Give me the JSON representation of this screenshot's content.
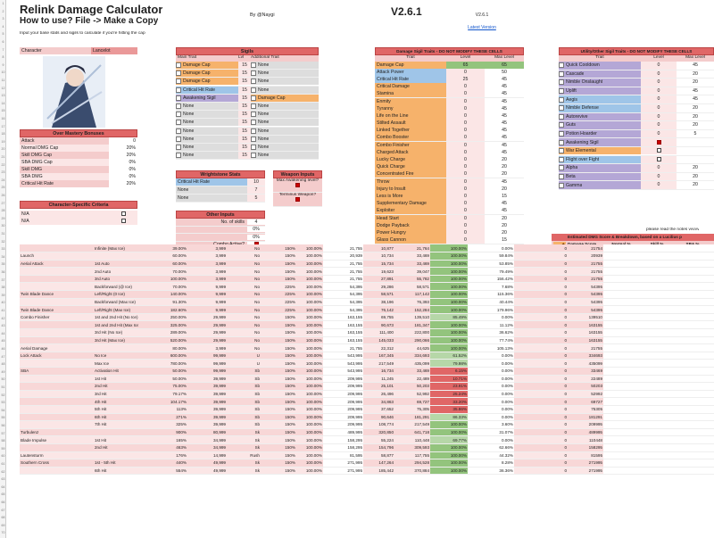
{
  "header": {
    "title": "Relink Damage Calculator",
    "subtitle": "How to use? File -> Make a Copy",
    "hint": "Input your base stats and sigils to calculate if you're hitting the cap",
    "byline": "By @Naygi",
    "version": "V2.6.1",
    "version_small": "V2.6.1",
    "latest_link": "Latest Version"
  },
  "character": {
    "label": "Character",
    "value": "Lancelot"
  },
  "mastery": {
    "title": "Over Mastery Bonuses",
    "rows": [
      {
        "name": "Attack",
        "value": "0"
      },
      {
        "name": "Normal DMG Cap",
        "value": "20%"
      },
      {
        "name": "Skill DMG Cap",
        "value": "20%"
      },
      {
        "name": "SBA DMG Cap",
        "value": "0%"
      },
      {
        "name": "Skill DMG",
        "value": "0%"
      },
      {
        "name": "SBA DMG",
        "value": "0%"
      },
      {
        "name": "Critical Hit Rate",
        "value": "20%"
      }
    ]
  },
  "char_criteria": {
    "title": "Character-Specific Criteria",
    "rows": [
      {
        "name": "N/A"
      },
      {
        "name": "N/A"
      }
    ]
  },
  "sigils": {
    "title": "Sigils",
    "col_main": "Main Trait",
    "col_lvl": "Lvl",
    "col_add": "Additional Trait",
    "rows": [
      {
        "main": "Damage Cap",
        "lvl": "15",
        "add": "None"
      },
      {
        "main": "Damage Cap",
        "lvl": "15",
        "add": "None"
      },
      {
        "main": "Damage Cap",
        "lvl": "15",
        "add": "None"
      },
      {
        "main": "Critical Hit Rate",
        "lvl": "15",
        "add": "None"
      },
      {
        "main": "Awakening Sigil",
        "lvl": "15",
        "add": "Damage Cap"
      },
      {
        "main": "None",
        "lvl": "15",
        "add": "None"
      },
      {
        "main": "None",
        "lvl": "15",
        "add": "None"
      },
      {
        "main": "None",
        "lvl": "15",
        "add": "None"
      },
      {
        "main": "None",
        "lvl": "15",
        "add": "None"
      },
      {
        "main": "None",
        "lvl": "15",
        "add": "None"
      },
      {
        "main": "None",
        "lvl": "15",
        "add": "None"
      },
      {
        "main": "None",
        "lvl": "15",
        "add": "None"
      }
    ]
  },
  "wrightstone": {
    "title": "Wrightstone Stats",
    "rows": [
      {
        "name": "Critical Hit Rate",
        "value": "10"
      },
      {
        "name": "None",
        "value": "7"
      },
      {
        "name": "None",
        "value": "5"
      }
    ]
  },
  "weapon": {
    "title": "Weapon Inputs",
    "rows": [
      {
        "name": "Max Awakening level?"
      },
      {
        "name": "Terminus Weapon?"
      }
    ]
  },
  "other": {
    "title": "Other Inputs",
    "rows": [
      {
        "name": "No. of skills",
        "value": "4"
      },
      {
        "name": "",
        "value": "0%"
      },
      {
        "name": "",
        "value": "0%"
      },
      {
        "name": "Combo Active?",
        "value": ""
      },
      {
        "name": "Current HP",
        "value": "100%"
      },
      {
        "name": "Back Attack?",
        "value": ""
      }
    ]
  },
  "dmg_traits": {
    "title": "Damage Sigil Traits - DO NOT MODIFY THESE CELLS",
    "col_trait": "Trait",
    "col_level": "Level",
    "col_max": "Max Level",
    "rows": [
      {
        "t": "Damage Cap",
        "l": "65",
        "m": "65"
      },
      {
        "t": "Attack Power",
        "l": "0",
        "m": "50"
      },
      {
        "t": "Critical Hit Rate",
        "l": "25",
        "m": "45"
      },
      {
        "t": "Critical Damage",
        "l": "0",
        "m": "45"
      },
      {
        "t": "Stamina",
        "l": "0",
        "m": "45"
      },
      {
        "t": "Enmity",
        "l": "0",
        "m": "45"
      },
      {
        "t": "Tyranny",
        "l": "0",
        "m": "45"
      },
      {
        "t": "Life on the Line",
        "l": "0",
        "m": "45"
      },
      {
        "t": "Stilted Assault",
        "l": "0",
        "m": "45"
      },
      {
        "t": "Linked Together",
        "l": "0",
        "m": "45"
      },
      {
        "t": "Combo Booster",
        "l": "0",
        "m": "45"
      },
      {
        "t": "Combo Finisher",
        "l": "0",
        "m": "45"
      },
      {
        "t": "Charged Attack",
        "l": "0",
        "m": "45"
      },
      {
        "t": "Lucky Charge",
        "l": "0",
        "m": "20"
      },
      {
        "t": "Quick Charge",
        "l": "0",
        "m": "20"
      },
      {
        "t": "Concentrated Fire",
        "l": "0",
        "m": "20"
      },
      {
        "t": "Throw",
        "l": "0",
        "m": "45"
      },
      {
        "t": "Injury to Insult",
        "l": "0",
        "m": "20"
      },
      {
        "t": "Less is More",
        "l": "0",
        "m": "15"
      },
      {
        "t": "Supplementary Damage",
        "l": "0",
        "m": "45"
      },
      {
        "t": "Exploiter",
        "l": "0",
        "m": "45"
      },
      {
        "t": "Head Start",
        "l": "0",
        "m": "20"
      },
      {
        "t": "Dodge Payback",
        "l": "0",
        "m": "20"
      },
      {
        "t": "Power Hungry",
        "l": "0",
        "m": "20"
      },
      {
        "t": "Glass Cannon",
        "l": "0",
        "m": "15"
      }
    ]
  },
  "utility": {
    "title": "Utility/Other Sigil Traits - DO NOT MODIFY THESE CELLS",
    "col_trait": "Trait",
    "col_level": "Level",
    "col_max": "Max Level",
    "rows": [
      {
        "t": "Quick Cooldown",
        "l": "0",
        "m": "45"
      },
      {
        "t": "Cascade",
        "l": "0",
        "m": "20"
      },
      {
        "t": "Nimble Onslaught",
        "l": "0",
        "m": "20"
      },
      {
        "t": "Uplift",
        "l": "0",
        "m": "45"
      },
      {
        "t": "Aegis",
        "l": "0",
        "m": "45"
      },
      {
        "t": "Nimble Defense",
        "l": "0",
        "m": "20"
      },
      {
        "t": "Autorevive",
        "l": "0",
        "m": "20"
      },
      {
        "t": "Guts",
        "l": "0",
        "m": "20"
      },
      {
        "t": "Potion Hoarder",
        "l": "0",
        "m": "5"
      },
      {
        "t": "Awakening Sigil",
        "l": "",
        "m": ""
      },
      {
        "t": "War Elemental",
        "l": "",
        "m": ""
      },
      {
        "t": "Flight over Fight",
        "l": "",
        "m": ""
      },
      {
        "t": "Alpha",
        "l": "0",
        "m": "20"
      },
      {
        "t": "Beta",
        "l": "0",
        "m": "20"
      },
      {
        "t": "Gamma",
        "l": "0",
        "m": "20"
      }
    ]
  },
  "estimate": {
    "note_top": "please read the notes vvvvv",
    "title": "Estimated DMG Score & Breakdown, based on a Lucilius p",
    "col1": "Damage Score",
    "col2": "Normal %",
    "col3": "Skill %",
    "col4": "SBA %",
    "v1": "0.00%",
    "v2": "No Data",
    "v3": "No Data",
    "v4": "No Data",
    "note": "*these values are based on an example run and are not de"
  },
  "table_rows": [
    [
      "",
      "Infinite (Max Ice)",
      "39.00%",
      "3,999",
      "No",
      "150%",
      "100.00%",
      "21,755",
      "10,877",
      "21,764",
      "100.00%",
      "0.00%",
      "0",
      "21754"
    ],
    [
      "Launch",
      "",
      "60.00%",
      "3,999",
      "No",
      "150%",
      "100.00%",
      "20,939",
      "10,734",
      "33,469",
      "100.00%",
      "59.84%",
      "0",
      "20939"
    ],
    [
      "Aerial Attack",
      "1st Auto",
      "60.00%",
      "3,999",
      "No",
      "150%",
      "100.00%",
      "21,755",
      "15,734",
      "33,469",
      "100.00%",
      "53.85%",
      "0",
      "21755"
    ],
    [
      "",
      "2nd Auto",
      "70.00%",
      "3,999",
      "No",
      "150%",
      "100.00%",
      "21,755",
      "19,623",
      "39,047",
      "100.00%",
      "79.49%",
      "0",
      "21755"
    ],
    [
      "",
      "3rd Auto",
      "100.00%",
      "3,999",
      "No",
      "150%",
      "100.00%",
      "21,755",
      "27,891",
      "55,782",
      "100.00%",
      "156.42%",
      "0",
      "21755"
    ],
    [
      "",
      "Backforward (@ Ice)",
      "70.00%",
      "9,999",
      "No",
      "225%",
      "100.00%",
      "54,395",
      "29,286",
      "58,571",
      "100.00%",
      "7.68%",
      "0",
      "54395"
    ],
    [
      "Twin Blade Dance",
      "Left/Right (0 Ice)",
      "140.00%",
      "9,999",
      "No",
      "225%",
      "100.00%",
      "54,395",
      "58,571",
      "117,142",
      "100.00%",
      "115.36%",
      "0",
      "54395"
    ],
    [
      "",
      "Backforward (Max Ice)",
      "91.30%",
      "9,999",
      "No",
      "225%",
      "100.00%",
      "54,395",
      "38,196",
      "76,393",
      "100.00%",
      "40.44%",
      "0",
      "54395"
    ],
    [
      "Twin Blade Dance",
      "Left/Right (Max Ice)",
      "182.60%",
      "9,999",
      "No",
      "225%",
      "100.00%",
      "54,395",
      "76,142",
      "152,284",
      "100.00%",
      "179.96%",
      "0",
      "54395"
    ],
    [
      "Combo Finisher",
      "1st and 2nd Hit (No Ice)",
      "250.00%",
      "29,999",
      "No",
      "150%",
      "100.00%",
      "163,155",
      "69,755",
      "139,510",
      "85.49%",
      "0.00%",
      "0",
      "139510"
    ],
    [
      "",
      "1st and 2nd Hit (Max Ice)",
      "325.00%",
      "29,999",
      "No",
      "150%",
      "100.00%",
      "163,155",
      "90,673",
      "181,347",
      "100.00%",
      "11.12%",
      "0",
      "163155"
    ],
    [
      "",
      "3rd Hit (No Ice)",
      "289.00%",
      "29,999",
      "No",
      "150%",
      "100.00%",
      "163,155",
      "111,400",
      "222,800",
      "100.00%",
      "36.62%",
      "0",
      "163155"
    ],
    [
      "",
      "3rd Hit (Max Ice)",
      "520.00%",
      "29,999",
      "No",
      "150%",
      "100.00%",
      "163,155",
      "145,033",
      "290,066",
      "100.00%",
      "77.74%",
      "0",
      "163155"
    ],
    [
      "Aerial Damage",
      "",
      "80.00%",
      "3,999",
      "No",
      "150%",
      "100.00%",
      "21,755",
      "22,312",
      "44,625",
      "100.00%",
      "105.13%",
      "0",
      "21755"
    ],
    [
      "Lock Attack",
      "No Ice",
      "600.00%",
      "99,999",
      "U",
      "150%",
      "100.00%",
      "543,995",
      "167,345",
      "334,693",
      "61.52%",
      "0.00%",
      "0",
      "334693"
    ],
    [
      "",
      "Max Ice",
      "780.00%",
      "99,999",
      "U",
      "150%",
      "100.00%",
      "543,995",
      "217,549",
      "435,099",
      "79.98%",
      "0.00%",
      "0",
      "435099"
    ],
    [
      "SBA",
      "Activation Hit",
      "50.00%",
      "99,999",
      "Sb",
      "150%",
      "100.00%",
      "543,995",
      "16,734",
      "33,469",
      "6.15%",
      "0.00%",
      "0",
      "33469"
    ],
    [
      "",
      "1st Hit",
      "50.00%",
      "39,999",
      "Sb",
      "150%",
      "100.00%",
      "209,995",
      "11,245",
      "22,489",
      "10.71%",
      "0.00%",
      "0",
      "22489"
    ],
    [
      "",
      "2nd Hit",
      "75.00%",
      "39,999",
      "Sb",
      "150%",
      "100.00%",
      "209,995",
      "25,101",
      "50,203",
      "23.91%",
      "0.00%",
      "0",
      "50203"
    ],
    [
      "",
      "3rd Hit",
      "79.17%",
      "39,999",
      "Sb",
      "150%",
      "100.00%",
      "209,995",
      "26,496",
      "52,992",
      "25.24%",
      "0.00%",
      "0",
      "52992"
    ],
    [
      "",
      "4th Hit",
      "104.17%",
      "39,999",
      "Sb",
      "150%",
      "100.00%",
      "209,995",
      "34,863",
      "69,727",
      "33.20%",
      "0.00%",
      "0",
      "69727"
    ],
    [
      "",
      "5th Hit",
      "113%",
      "39,999",
      "Sb",
      "150%",
      "100.00%",
      "209,995",
      "37,652",
      "75,305",
      "35.86%",
      "0.00%",
      "0",
      "75305"
    ],
    [
      "",
      "6th Hit",
      "271%",
      "39,999",
      "Sb",
      "150%",
      "100.00%",
      "209,995",
      "90,646",
      "181,291",
      "86.33%",
      "0.00%",
      "0",
      "181291"
    ],
    [
      "",
      "7th Hit",
      "325%",
      "39,999",
      "Sb",
      "150%",
      "100.00%",
      "209,995",
      "108,774",
      "217,549",
      "100.00%",
      "3.60%",
      "0",
      "209995"
    ],
    [
      "Turbulenz",
      "",
      "900%",
      "80,999",
      "Sk",
      "150%",
      "100.00%",
      "489,995",
      "320,850",
      "641,718",
      "100.00%",
      "31.07%",
      "0",
      "489995"
    ],
    [
      "Blade Impulse",
      "1st Hit",
      "165%",
      "34,999",
      "Sk",
      "150%",
      "100.00%",
      "158,295",
      "55,224",
      "110,448",
      "69.77%",
      "0.00%",
      "0",
      "110448"
    ],
    [
      "",
      "2nd Hit",
      "463%",
      "34,999",
      "Sk",
      "150%",
      "100.00%",
      "158,295",
      "154,796",
      "309,593",
      "100.00%",
      "62.66%",
      "0",
      "158295"
    ],
    [
      "Lautensturm",
      "",
      "176%",
      "14,999",
      "Rush",
      "150%",
      "100.00%",
      "81,595",
      "58,877",
      "117,755",
      "100.00%",
      "44.32%",
      "0",
      "81595"
    ],
    [
      "Southern Cross",
      "1st - 5th Hit",
      "440%",
      "49,999",
      "Sk",
      "150%",
      "100.00%",
      "271,995",
      "147,264",
      "294,528",
      "100.00%",
      "8.28%",
      "0",
      "271995"
    ],
    [
      "",
      "6th Hit",
      "554%",
      "49,999",
      "Sk",
      "150%",
      "100.00%",
      "271,995",
      "185,442",
      "370,884",
      "100.00%",
      "36.36%",
      "0",
      "271995"
    ]
  ]
}
